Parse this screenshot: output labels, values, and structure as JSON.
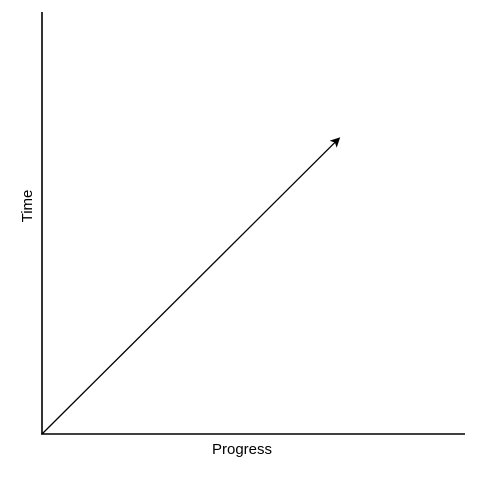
{
  "chart_data": {
    "type": "line",
    "title": "",
    "xlabel": "Progress",
    "ylabel": "Time",
    "grid": false,
    "series": [
      {
        "x": [
          0,
          0.7
        ],
        "y": [
          0,
          0.7
        ],
        "arrow_end": true
      }
    ]
  },
  "colors": {
    "axis": "#000000",
    "line": "#000000",
    "background": "#ffffff"
  }
}
